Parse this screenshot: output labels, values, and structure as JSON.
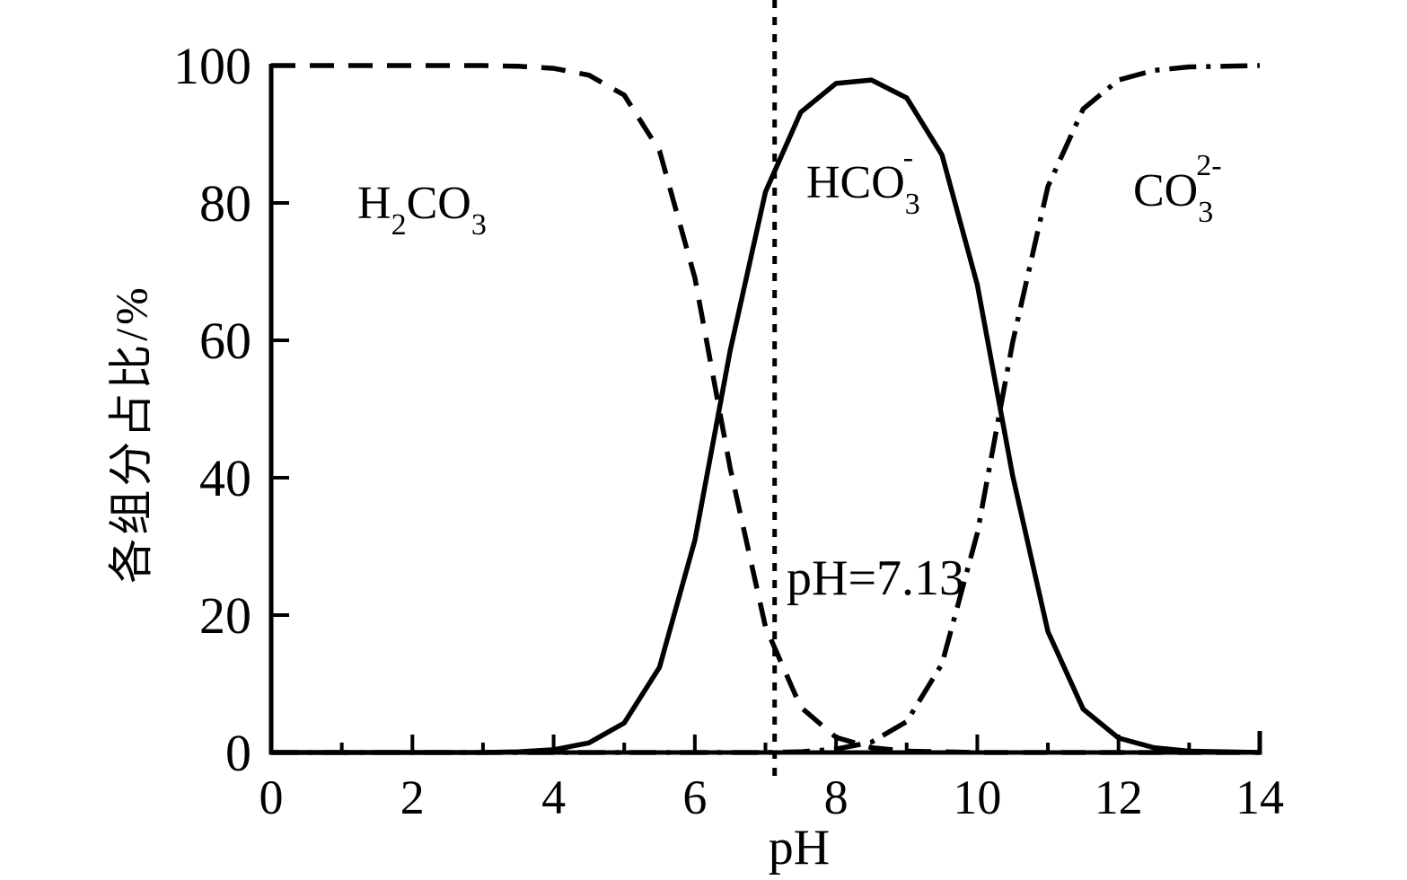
{
  "chart": {
    "background": "#ffffff",
    "ink_color": "#000000",
    "x_axis": {
      "label": "pH",
      "tick_labels": [
        "0",
        "2",
        "4",
        "6",
        "8",
        "10",
        "12",
        "14"
      ]
    },
    "y_axis": {
      "label": "各组分占比/%",
      "tick_labels": [
        "0",
        "20",
        "40",
        "60",
        "80",
        "100"
      ]
    },
    "annotation_vline_label": "pH=7.13",
    "species_labels": {
      "h2co3": {
        "display": "H2CO3",
        "parts": [
          [
            "H",
            "n"
          ],
          [
            "2",
            "sub"
          ],
          [
            "CO",
            "n"
          ],
          [
            "3",
            "sub"
          ]
        ]
      },
      "hco3": {
        "display": "HCO3-",
        "parts": [
          [
            "HCO",
            "n"
          ],
          [
            "3",
            "sub"
          ],
          [
            "-",
            "supstack"
          ]
        ]
      },
      "co3": {
        "display": "CO3 2-",
        "parts": [
          [
            "CO",
            "n"
          ],
          [
            "3",
            "sub"
          ],
          [
            "2-",
            "supstack"
          ]
        ]
      }
    }
  },
  "chart_data": {
    "type": "line",
    "title": "",
    "xlabel": "pH",
    "ylabel": "各组分占比/%",
    "xlim": [
      0,
      14
    ],
    "ylim": [
      0,
      100
    ],
    "grid": false,
    "legend": "none",
    "x_major_ticks": [
      0,
      2,
      4,
      6,
      8,
      10,
      12,
      14
    ],
    "x_minor_ticks": [
      1,
      3,
      5,
      7,
      9,
      11,
      13
    ],
    "y_major_ticks": [
      0,
      20,
      40,
      60,
      80,
      100
    ],
    "x": [
      0,
      0.5,
      1,
      1.5,
      2,
      2.5,
      3,
      3.5,
      4,
      4.5,
      5,
      5.5,
      6,
      6.5,
      7,
      7.5,
      8,
      8.5,
      9,
      9.5,
      10,
      10.5,
      11,
      11.5,
      12,
      12.5,
      13,
      13.5,
      14
    ],
    "series": [
      {
        "name": "H2CO3",
        "label": "H₂CO₃",
        "line_style": "dashed",
        "color": "#000000",
        "values": [
          100,
          100,
          100,
          100,
          100,
          100,
          100,
          99.9,
          99.6,
          98.6,
          95.7,
          87.6,
          69.1,
          41.4,
          18.3,
          6.6,
          2.2,
          0.7,
          0.2,
          0.1,
          0,
          0,
          0,
          0,
          0,
          0,
          0,
          0,
          0
        ]
      },
      {
        "name": "HCO3-",
        "label": "HCO₃⁻",
        "line_style": "solid",
        "color": "#000000",
        "values": [
          0,
          0,
          0,
          0,
          0,
          0,
          0,
          0.1,
          0.4,
          1.4,
          4.3,
          12.4,
          30.9,
          58.5,
          81.6,
          93.2,
          97.4,
          97.9,
          95.3,
          87,
          68.1,
          40.3,
          17.6,
          6.3,
          2.1,
          0.7,
          0.2,
          0.1,
          0
        ]
      },
      {
        "name": "CO3^2-",
        "label": "CO₃²⁻",
        "line_style": "dash-dot",
        "color": "#000000",
        "values": [
          0,
          0,
          0,
          0,
          0,
          0,
          0,
          0,
          0,
          0,
          0,
          0,
          0,
          0,
          0,
          0.1,
          0.5,
          1.5,
          4.5,
          12.9,
          31.9,
          59.7,
          82.4,
          93.7,
          97.9,
          99.3,
          99.8,
          99.9,
          100
        ]
      }
    ],
    "annotations": [
      {
        "type": "vline",
        "x": 7.13,
        "line_style": "dotted",
        "label": "pH=7.13"
      }
    ]
  }
}
